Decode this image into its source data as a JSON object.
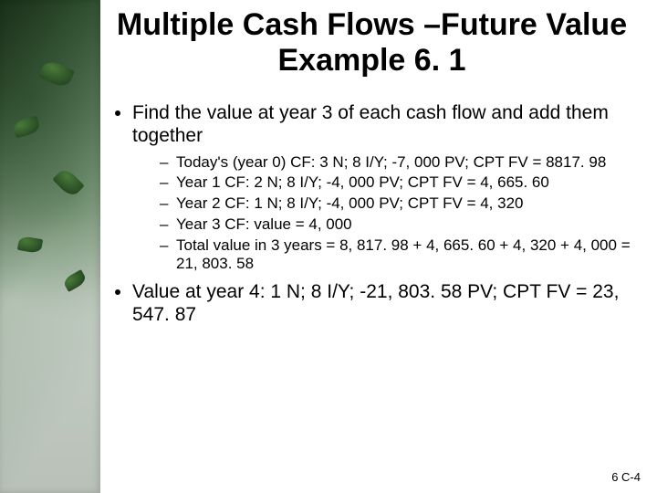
{
  "title": "Multiple Cash Flows –Future Value Example 6. 1",
  "bullets": [
    {
      "text": "Find the value at year 3 of each cash flow and add them together",
      "sub": [
        "Today's (year 0) CF: 3 N; 8 I/Y; -7, 000 PV; CPT FV = 8817. 98",
        "Year 1 CF: 2 N; 8 I/Y; -4, 000 PV; CPT FV = 4, 665. 60",
        "Year 2 CF: 1 N; 8 I/Y; -4, 000 PV; CPT FV = 4, 320",
        "Year 3 CF: value = 4, 000",
        "Total value in 3 years = 8, 817. 98 + 4, 665. 60 + 4, 320 + 4, 000 = 21, 803. 58"
      ]
    },
    {
      "text": "Value at year 4: 1 N; 8 I/Y; -21, 803. 58 PV; CPT FV = 23, 547. 87",
      "sub": []
    }
  ],
  "footer": "6 C-4"
}
